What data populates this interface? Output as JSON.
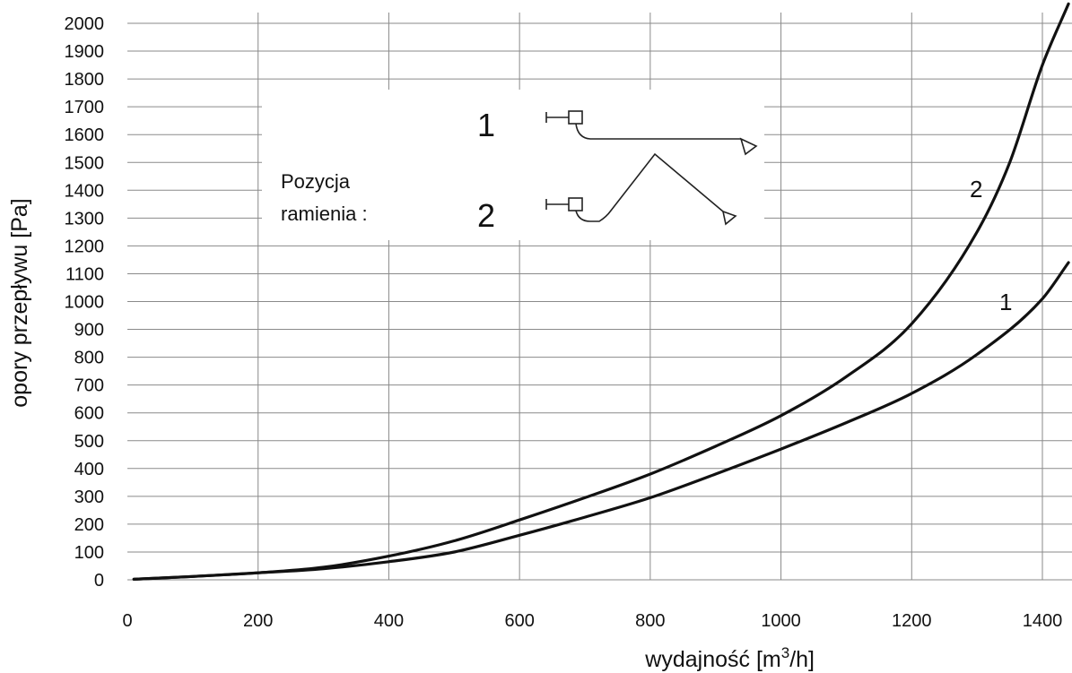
{
  "chart_data": {
    "type": "line",
    "xlabel": "wydajność [m",
    "xlabel_sup": "3",
    "xlabel_end": "/h]",
    "ylabel": "opory przepływu [Pa]",
    "xlim": [
      0,
      1440
    ],
    "ylim": [
      0,
      2050
    ],
    "x_ticks": [
      0,
      200,
      400,
      600,
      800,
      1000,
      1200,
      1400
    ],
    "y_ticks": [
      0,
      100,
      200,
      300,
      400,
      500,
      600,
      700,
      800,
      900,
      1000,
      1100,
      1200,
      1300,
      1400,
      1500,
      1600,
      1700,
      1800,
      1900,
      2000
    ],
    "grid": true,
    "series": [
      {
        "name": "1",
        "x": [
          10,
          100,
          200,
          300,
          400,
          500,
          600,
          700,
          800,
          900,
          1000,
          1100,
          1200,
          1300,
          1400,
          1440
        ],
        "values": [
          2,
          12,
          25,
          40,
          65,
          100,
          160,
          225,
          295,
          380,
          470,
          565,
          670,
          810,
          1010,
          1140
        ]
      },
      {
        "name": "2",
        "x": [
          10,
          100,
          200,
          300,
          400,
          500,
          600,
          700,
          800,
          900,
          1000,
          1100,
          1200,
          1300,
          1350,
          1400,
          1440
        ],
        "values": [
          2,
          12,
          25,
          45,
          85,
          140,
          215,
          295,
          380,
          480,
          590,
          730,
          920,
          1250,
          1500,
          1850,
          2070
        ]
      }
    ]
  },
  "inset": {
    "title_line1": "Pozycja",
    "title_line2": "ramienia :",
    "position1": "1",
    "position2": "2"
  }
}
